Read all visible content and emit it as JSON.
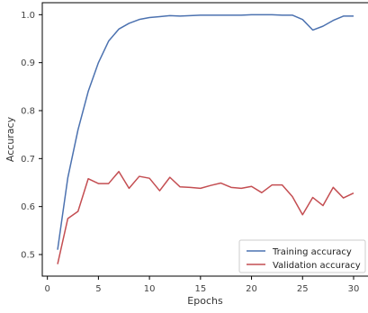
{
  "chart_data": {
    "type": "line",
    "title": "",
    "xlabel": "Epochs",
    "ylabel": "Accuracy",
    "xlim": [
      -0.5,
      31.5
    ],
    "ylim": [
      0.455,
      1.025
    ],
    "xticks": [
      0,
      5,
      10,
      15,
      20,
      25,
      30
    ],
    "xtick_labels": [
      "0",
      "5",
      "10",
      "15",
      "20",
      "25",
      "30"
    ],
    "yticks": [
      0.5,
      0.6,
      0.7,
      0.8,
      0.9,
      1.0
    ],
    "ytick_labels": [
      "0.5",
      "0.6",
      "0.7",
      "0.8",
      "0.9",
      "1.0"
    ],
    "grid": false,
    "legend_position": "bottom-right",
    "x": [
      1,
      2,
      3,
      4,
      5,
      6,
      7,
      8,
      9,
      10,
      11,
      12,
      13,
      14,
      15,
      16,
      17,
      18,
      19,
      20,
      21,
      22,
      23,
      24,
      25,
      26,
      27,
      28,
      29,
      30
    ],
    "series": [
      {
        "name": "Training accuracy",
        "color": "#4c72b0",
        "values": [
          0.51,
          0.66,
          0.76,
          0.84,
          0.9,
          0.945,
          0.97,
          0.982,
          0.99,
          0.994,
          0.996,
          0.998,
          0.997,
          0.998,
          0.999,
          0.999,
          0.999,
          0.999,
          0.999,
          1.0,
          1.0,
          1.0,
          0.999,
          0.999,
          0.99,
          0.968,
          0.976,
          0.988,
          0.997,
          0.997
        ]
      },
      {
        "name": "Validation accuracy",
        "color": "#c44e52",
        "values": [
          0.48,
          0.575,
          0.59,
          0.658,
          0.648,
          0.648,
          0.673,
          0.638,
          0.663,
          0.659,
          0.633,
          0.661,
          0.641,
          0.64,
          0.638,
          0.644,
          0.649,
          0.64,
          0.638,
          0.642,
          0.629,
          0.645,
          0.645,
          0.621,
          0.583,
          0.619,
          0.602,
          0.64,
          0.618,
          0.628
        ]
      }
    ]
  }
}
